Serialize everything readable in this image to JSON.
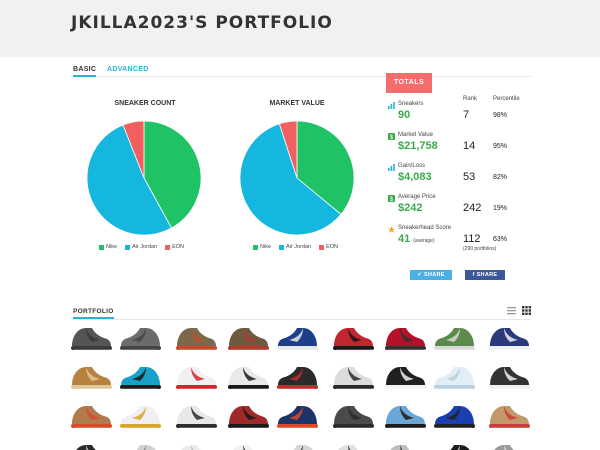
{
  "page": {
    "title": "JKILLA2023'S PORTFOLIO"
  },
  "tabs": {
    "basic": "BASIC",
    "advanced": "ADVANCED"
  },
  "charts": {
    "sneaker_count_title": "SNEAKER COUNT",
    "market_value_title": "MARKET VALUE",
    "legend": [
      "Nike",
      "Air Jordan",
      "EON"
    ],
    "colors": {
      "Nike": "#1fc365",
      "Air Jordan": "#16b7df",
      "EON": "#f25f5f"
    }
  },
  "chart_data": [
    {
      "type": "pie",
      "title": "SNEAKER COUNT",
      "categories": [
        "Nike",
        "Air Jordan",
        "EON"
      ],
      "values": [
        42,
        52,
        6
      ]
    },
    {
      "type": "pie",
      "title": "MARKET VALUE",
      "categories": [
        "Nike",
        "Air Jordan",
        "EON"
      ],
      "values": [
        36,
        59,
        5
      ]
    }
  ],
  "totals": {
    "tab_label": "TOTALS",
    "rank_header": "Rank",
    "percentile_header": "Percentile",
    "rows": [
      {
        "icon": "bar-chart-icon",
        "label": "Sneakers",
        "value": "90",
        "value_sub": "",
        "rank": "7",
        "rank_sub": "",
        "percentile": "98%"
      },
      {
        "icon": "dollar-icon",
        "label": "Market Value",
        "value": "$21,758",
        "value_sub": "",
        "rank": "14",
        "rank_sub": "",
        "percentile": "95%"
      },
      {
        "icon": "gain-icon",
        "label": "Gain/Loss",
        "value": "$4,083",
        "value_sub": "",
        "rank": "53",
        "rank_sub": "",
        "percentile": "82%"
      },
      {
        "icon": "price-icon",
        "label": "Average Price",
        "value": "$242",
        "value_sub": "",
        "rank": "242",
        "rank_sub": "",
        "percentile": "19%"
      },
      {
        "icon": "star-icon",
        "label": "Sneakerhead Score",
        "value": "41",
        "value_sub": "(average)",
        "rank": "112",
        "rank_sub": "(290 portfolios)",
        "percentile": "63%"
      }
    ]
  },
  "share": {
    "twitter": "SHARE",
    "facebook": "SHARE"
  },
  "portfolio": {
    "label": "PORTFOLIO",
    "shoes": [
      [
        "#555555",
        "#3a3a3a"
      ],
      [
        "#6b6b6b",
        "#444444"
      ],
      [
        "#7a6a4a",
        "#c44b2b"
      ],
      [
        "#6e5a3e",
        "#b03a2e"
      ],
      [
        "#1d3f8a",
        "#e8e8e8"
      ],
      [
        "#c2262e",
        "#1a1a1a"
      ],
      [
        "#b5122a",
        "#333333"
      ],
      [
        "#5c8a4b",
        "#d9d9d9"
      ],
      [
        "#2a3a7a",
        "#f0f0f0"
      ],
      [
        "#b8823e",
        "#e0c79a"
      ],
      [
        "#1aa0c8",
        "#1a1a1a"
      ],
      [
        "#f0f0f0",
        "#d4232b"
      ],
      [
        "#e9e9e9",
        "#1a1a1a"
      ],
      [
        "#2a2a2a",
        "#c02a2a"
      ],
      [
        "#dcdcdc",
        "#2a2a2a"
      ],
      [
        "#202020",
        "#f2f2f2"
      ],
      [
        "#e2eef5",
        "#b7cfdf"
      ],
      [
        "#333333",
        "#f0f0f0"
      ],
      [
        "#b07a4a",
        "#d94a2a"
      ],
      [
        "#f0f0f0",
        "#d8a42a"
      ],
      [
        "#e8e8e8",
        "#2c2c2c"
      ],
      [
        "#a02a2a",
        "#1a1a1a"
      ],
      [
        "#1e3466",
        "#e04a2a"
      ],
      [
        "#4a4a4a",
        "#2a2a2a"
      ],
      [
        "#6aa6d6",
        "#1a1a1a"
      ],
      [
        "#1b3fb0",
        "#222222"
      ],
      [
        "#c29a6a",
        "#cc3a3a"
      ],
      [
        "#2a2a2a",
        "#e6e6e6"
      ],
      [
        "#d0d0d0",
        "#8a8a8a"
      ],
      [
        "#ececec",
        "#b5b5b5"
      ],
      [
        "#f0f0f0",
        "#2a2a2a"
      ],
      [
        "#d6d6d6",
        "#3a3a3a"
      ],
      [
        "#e0e0e0",
        "#1a1a1a"
      ],
      [
        "#bdbdbd",
        "#2f2f2f"
      ],
      [
        "#1c1c1c",
        "#cccccc"
      ],
      [
        "#9a9a9a",
        "#e0e0e0"
      ]
    ]
  }
}
